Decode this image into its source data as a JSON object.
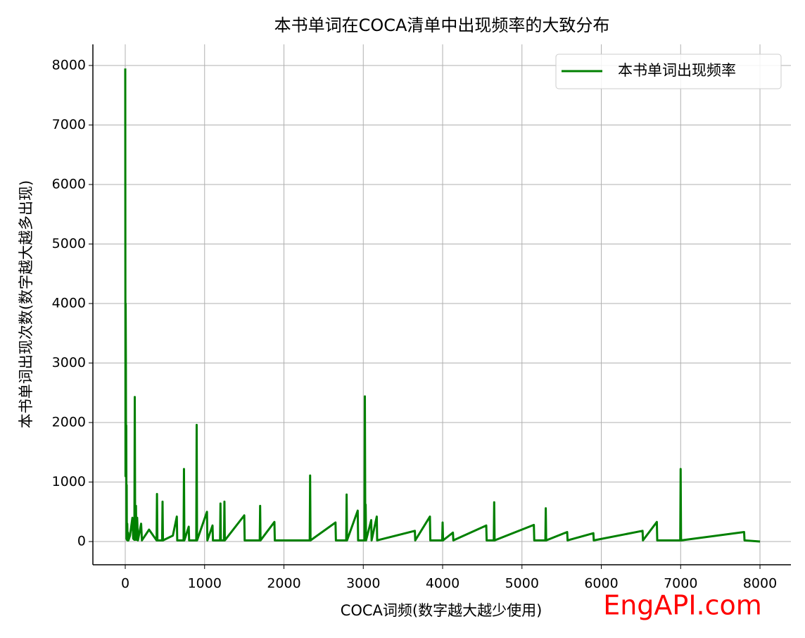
{
  "chart_data": {
    "type": "line",
    "title": "本书单词在COCA清单中出现频率的大致分布",
    "x_label": "COCA词频(数字越大越少使用)",
    "y_label": "本书单词出现次数(数字越大越多出现)",
    "watermark": "EngAPI.com",
    "x": [
      0,
      3,
      5,
      8,
      10,
      13,
      15,
      18,
      20,
      25,
      30,
      35,
      40,
      60,
      90,
      100,
      115,
      120,
      125,
      135,
      140,
      150,
      160,
      200,
      210,
      300,
      395,
      400,
      405,
      465,
      470,
      475,
      600,
      650,
      655,
      735,
      740,
      745,
      800,
      805,
      895,
      900,
      905,
      1030,
      1035,
      1100,
      1105,
      1195,
      1200,
      1205,
      1245,
      1250,
      1255,
      1500,
      1505,
      1695,
      1700,
      1705,
      1880,
      1885,
      2325,
      2330,
      2335,
      2650,
      2655,
      2785,
      2790,
      2795,
      2930,
      2935,
      3015,
      3020,
      3025,
      3030,
      3035,
      3100,
      3105,
      3170,
      3175,
      3650,
      3655,
      3840,
      3845,
      3995,
      4000,
      4005,
      4130,
      4135,
      4550,
      4555,
      4645,
      4650,
      4655,
      5150,
      5155,
      5295,
      5300,
      5305,
      5570,
      5575,
      5900,
      5905,
      6520,
      6525,
      6700,
      6705,
      6995,
      7000,
      7005,
      7800,
      7805,
      8000
    ],
    "series": [
      {
        "name": "本书单词出现频率",
        "color": "#008000",
        "values": [
          7950,
          1100,
          4000,
          2900,
          1100,
          1950,
          50,
          950,
          30,
          300,
          20,
          150,
          20,
          100,
          400,
          50,
          30,
          2430,
          30,
          600,
          30,
          400,
          20,
          300,
          20,
          200,
          20,
          800,
          20,
          20,
          670,
          20,
          100,
          420,
          20,
          20,
          1220,
          20,
          250,
          20,
          20,
          1960,
          20,
          500,
          20,
          270,
          20,
          20,
          640,
          20,
          20,
          670,
          20,
          440,
          20,
          20,
          600,
          20,
          330,
          20,
          20,
          1110,
          20,
          320,
          20,
          20,
          790,
          20,
          520,
          20,
          20,
          2440,
          300,
          620,
          20,
          360,
          20,
          420,
          20,
          180,
          20,
          420,
          20,
          20,
          320,
          20,
          150,
          20,
          270,
          20,
          20,
          660,
          20,
          280,
          20,
          20,
          560,
          20,
          160,
          20,
          140,
          20,
          180,
          20,
          330,
          20,
          20,
          1220,
          20,
          160,
          20,
          0
        ]
      }
    ],
    "xlim": [
      -408,
      8390
    ],
    "ylim": [
      -390,
      8355
    ],
    "xticks": [
      0,
      1000,
      2000,
      3000,
      4000,
      5000,
      6000,
      7000,
      8000
    ],
    "yticks": [
      0,
      1000,
      2000,
      3000,
      4000,
      5000,
      6000,
      7000,
      8000
    ],
    "grid": true,
    "legend": "upper right"
  }
}
